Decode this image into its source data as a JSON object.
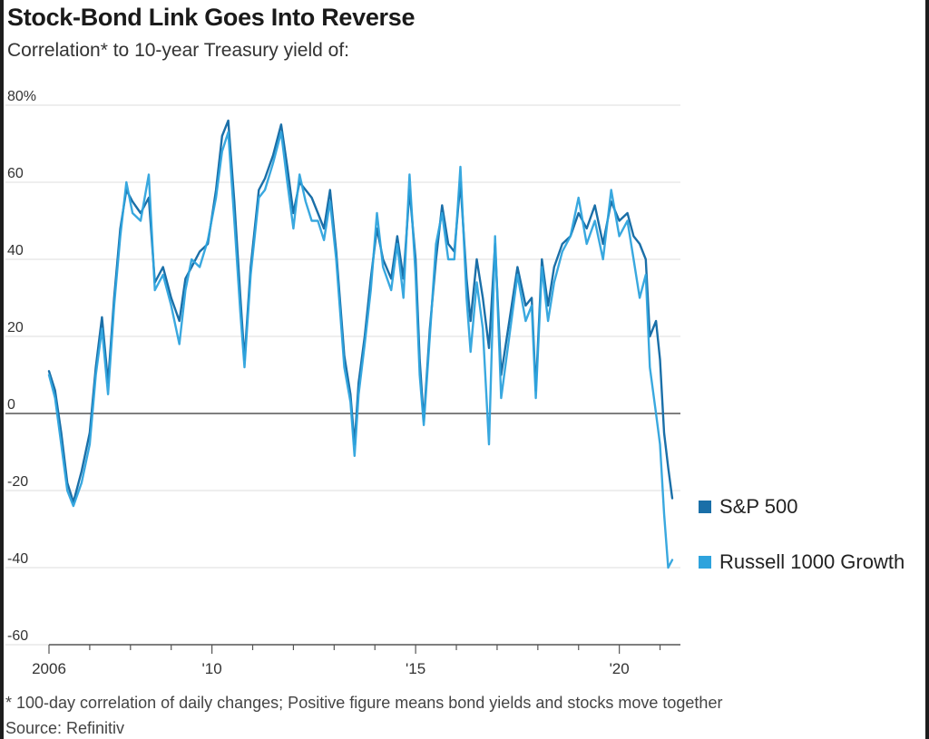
{
  "header": {
    "title": "Stock-Bond Link Goes Into Reverse",
    "subtitle": "Correlation* to 10-year Treasury yield of:"
  },
  "footer": {
    "footnote": "* 100-day correlation of daily changes; Positive figure means bond yields and stocks move together",
    "source": "Source: Refinitiv"
  },
  "legend": [
    {
      "label": "S&P 500",
      "color": "#1a6fa8"
    },
    {
      "label": "Russell 1000 Growth",
      "color": "#2ea3dd"
    }
  ],
  "chart_data": {
    "type": "line",
    "title": "Stock-Bond Link Goes Into Reverse",
    "subtitle": "Correlation* to 10-year Treasury yield of:",
    "ylim": [
      -60,
      80
    ],
    "xlim": [
      2006.0,
      2021.5
    ],
    "y_ticks": [
      -60,
      -40,
      -20,
      0,
      20,
      40,
      60,
      80
    ],
    "y_tick_labels": [
      "-60",
      "-40",
      "-20",
      "0",
      "20",
      "40",
      "60",
      "80%"
    ],
    "x_tick_labels": [
      {
        "x": 2006,
        "label": "2006"
      },
      {
        "x": 2010,
        "label": "'10"
      },
      {
        "x": 2015,
        "label": "'15"
      },
      {
        "x": 2020,
        "label": "'20"
      }
    ],
    "grid": true,
    "legend_position": "right",
    "series": [
      {
        "name": "S&P 500",
        "color": "#1a6fa8",
        "points": [
          [
            2006.0,
            11
          ],
          [
            2006.15,
            6
          ],
          [
            2006.3,
            -5
          ],
          [
            2006.45,
            -18
          ],
          [
            2006.6,
            -23
          ],
          [
            2006.8,
            -15
          ],
          [
            2007.0,
            -5
          ],
          [
            2007.15,
            12
          ],
          [
            2007.3,
            25
          ],
          [
            2007.45,
            8
          ],
          [
            2007.6,
            30
          ],
          [
            2007.75,
            48
          ],
          [
            2007.9,
            58
          ],
          [
            2008.05,
            55
          ],
          [
            2008.25,
            52
          ],
          [
            2008.45,
            56
          ],
          [
            2008.6,
            34
          ],
          [
            2008.8,
            38
          ],
          [
            2009.0,
            30
          ],
          [
            2009.2,
            24
          ],
          [
            2009.35,
            35
          ],
          [
            2009.5,
            38
          ],
          [
            2009.7,
            42
          ],
          [
            2009.9,
            44
          ],
          [
            2010.1,
            58
          ],
          [
            2010.25,
            72
          ],
          [
            2010.4,
            76
          ],
          [
            2010.55,
            55
          ],
          [
            2010.7,
            30
          ],
          [
            2010.8,
            14
          ],
          [
            2010.95,
            38
          ],
          [
            2011.15,
            58
          ],
          [
            2011.3,
            61
          ],
          [
            2011.5,
            67
          ],
          [
            2011.7,
            75
          ],
          [
            2011.85,
            64
          ],
          [
            2012.0,
            52
          ],
          [
            2012.15,
            60
          ],
          [
            2012.3,
            58
          ],
          [
            2012.45,
            56
          ],
          [
            2012.6,
            52
          ],
          [
            2012.75,
            48
          ],
          [
            2012.9,
            58
          ],
          [
            2013.05,
            42
          ],
          [
            2013.25,
            15
          ],
          [
            2013.4,
            5
          ],
          [
            2013.5,
            -8
          ],
          [
            2013.6,
            8
          ],
          [
            2013.75,
            20
          ],
          [
            2013.9,
            35
          ],
          [
            2014.05,
            48
          ],
          [
            2014.2,
            40
          ],
          [
            2014.4,
            35
          ],
          [
            2014.55,
            46
          ],
          [
            2014.7,
            35
          ],
          [
            2014.85,
            58
          ],
          [
            2015.0,
            40
          ],
          [
            2015.1,
            14
          ],
          [
            2015.2,
            -2
          ],
          [
            2015.35,
            22
          ],
          [
            2015.5,
            40
          ],
          [
            2015.65,
            54
          ],
          [
            2015.8,
            44
          ],
          [
            2015.95,
            42
          ],
          [
            2016.1,
            60
          ],
          [
            2016.25,
            35
          ],
          [
            2016.35,
            24
          ],
          [
            2016.5,
            40
          ],
          [
            2016.65,
            30
          ],
          [
            2016.8,
            17
          ],
          [
            2016.95,
            44
          ],
          [
            2017.1,
            10
          ],
          [
            2017.3,
            24
          ],
          [
            2017.5,
            38
          ],
          [
            2017.7,
            28
          ],
          [
            2017.85,
            30
          ],
          [
            2017.95,
            6
          ],
          [
            2018.1,
            40
          ],
          [
            2018.25,
            28
          ],
          [
            2018.4,
            38
          ],
          [
            2018.6,
            44
          ],
          [
            2018.8,
            46
          ],
          [
            2019.0,
            52
          ],
          [
            2019.2,
            48
          ],
          [
            2019.4,
            54
          ],
          [
            2019.6,
            44
          ],
          [
            2019.8,
            55
          ],
          [
            2020.0,
            50
          ],
          [
            2020.2,
            52
          ],
          [
            2020.35,
            46
          ],
          [
            2020.5,
            44
          ],
          [
            2020.65,
            40
          ],
          [
            2020.75,
            20
          ],
          [
            2020.9,
            24
          ],
          [
            2021.0,
            14
          ],
          [
            2021.1,
            -5
          ],
          [
            2021.2,
            -14
          ],
          [
            2021.3,
            -22
          ]
        ]
      },
      {
        "name": "Russell 1000 Growth",
        "color": "#2ea3dd",
        "points": [
          [
            2006.0,
            10
          ],
          [
            2006.15,
            4
          ],
          [
            2006.3,
            -8
          ],
          [
            2006.45,
            -20
          ],
          [
            2006.6,
            -24
          ],
          [
            2006.8,
            -18
          ],
          [
            2007.0,
            -8
          ],
          [
            2007.15,
            10
          ],
          [
            2007.3,
            22
          ],
          [
            2007.45,
            5
          ],
          [
            2007.6,
            28
          ],
          [
            2007.75,
            46
          ],
          [
            2007.9,
            60
          ],
          [
            2008.05,
            52
          ],
          [
            2008.25,
            50
          ],
          [
            2008.45,
            62
          ],
          [
            2008.6,
            32
          ],
          [
            2008.8,
            36
          ],
          [
            2009.0,
            28
          ],
          [
            2009.2,
            18
          ],
          [
            2009.35,
            32
          ],
          [
            2009.5,
            40
          ],
          [
            2009.7,
            38
          ],
          [
            2009.9,
            45
          ],
          [
            2010.1,
            56
          ],
          [
            2010.25,
            68
          ],
          [
            2010.4,
            73
          ],
          [
            2010.55,
            50
          ],
          [
            2010.7,
            26
          ],
          [
            2010.8,
            12
          ],
          [
            2010.95,
            36
          ],
          [
            2011.15,
            56
          ],
          [
            2011.3,
            58
          ],
          [
            2011.5,
            65
          ],
          [
            2011.7,
            73
          ],
          [
            2011.85,
            60
          ],
          [
            2012.0,
            48
          ],
          [
            2012.15,
            62
          ],
          [
            2012.3,
            55
          ],
          [
            2012.45,
            50
          ],
          [
            2012.6,
            50
          ],
          [
            2012.75,
            45
          ],
          [
            2012.9,
            55
          ],
          [
            2013.05,
            40
          ],
          [
            2013.25,
            12
          ],
          [
            2013.4,
            3
          ],
          [
            2013.5,
            -11
          ],
          [
            2013.6,
            5
          ],
          [
            2013.75,
            18
          ],
          [
            2013.9,
            32
          ],
          [
            2014.05,
            52
          ],
          [
            2014.2,
            38
          ],
          [
            2014.4,
            32
          ],
          [
            2014.55,
            44
          ],
          [
            2014.7,
            30
          ],
          [
            2014.85,
            62
          ],
          [
            2015.0,
            36
          ],
          [
            2015.1,
            10
          ],
          [
            2015.2,
            -3
          ],
          [
            2015.35,
            20
          ],
          [
            2015.5,
            44
          ],
          [
            2015.65,
            52
          ],
          [
            2015.8,
            40
          ],
          [
            2015.95,
            40
          ],
          [
            2016.1,
            64
          ],
          [
            2016.25,
            30
          ],
          [
            2016.35,
            16
          ],
          [
            2016.5,
            34
          ],
          [
            2016.65,
            22
          ],
          [
            2016.8,
            -8
          ],
          [
            2016.95,
            46
          ],
          [
            2017.1,
            4
          ],
          [
            2017.3,
            20
          ],
          [
            2017.5,
            36
          ],
          [
            2017.7,
            24
          ],
          [
            2017.85,
            28
          ],
          [
            2017.95,
            4
          ],
          [
            2018.1,
            38
          ],
          [
            2018.25,
            24
          ],
          [
            2018.4,
            34
          ],
          [
            2018.6,
            42
          ],
          [
            2018.8,
            46
          ],
          [
            2019.0,
            56
          ],
          [
            2019.2,
            44
          ],
          [
            2019.4,
            50
          ],
          [
            2019.6,
            40
          ],
          [
            2019.8,
            58
          ],
          [
            2020.0,
            46
          ],
          [
            2020.2,
            50
          ],
          [
            2020.35,
            40
          ],
          [
            2020.5,
            30
          ],
          [
            2020.65,
            36
          ],
          [
            2020.75,
            12
          ],
          [
            2020.9,
            0
          ],
          [
            2021.0,
            -8
          ],
          [
            2021.1,
            -26
          ],
          [
            2021.2,
            -40
          ],
          [
            2021.3,
            -38
          ]
        ]
      }
    ]
  }
}
